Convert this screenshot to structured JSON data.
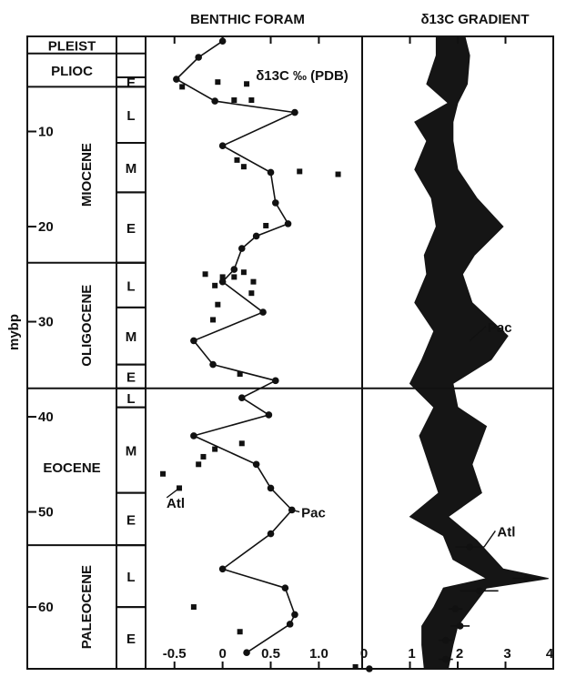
{
  "chart_data": [
    {
      "type": "table",
      "ylabel": "mybp",
      "yticks": [
        10,
        20,
        30,
        40,
        50,
        60
      ],
      "epochs": [
        {
          "label": "PLEIST",
          "start": 0,
          "end": 1.8,
          "subs": []
        },
        {
          "label": "PLIOC",
          "start": 1.8,
          "end": 5.3,
          "subs": [
            {
              "label": "E",
              "start": 4.3,
              "end": 5.3
            }
          ]
        },
        {
          "label": "MIOCENE",
          "start": 5.3,
          "end": 23.8,
          "subs": [
            {
              "label": "L",
              "start": 5.3,
              "end": 11.2
            },
            {
              "label": "M",
              "start": 11.2,
              "end": 16.4
            },
            {
              "label": "E",
              "start": 16.4,
              "end": 23.8
            }
          ]
        },
        {
          "label": "OLIGOCENE",
          "start": 23.8,
          "end": 37.0,
          "subs": [
            {
              "label": "L",
              "start": 23.8,
              "end": 28.5
            },
            {
              "label": "M",
              "start": 28.5,
              "end": 34.5
            },
            {
              "label": "E",
              "start": 34.5,
              "end": 37.0
            }
          ]
        },
        {
          "label": "EOCENE",
          "start": 37.0,
          "end": 53.5,
          "subs": [
            {
              "label": "L",
              "start": 37.0,
              "end": 39.0
            },
            {
              "label": "M",
              "start": 39.0,
              "end": 48.0
            },
            {
              "label": "E",
              "start": 48.0,
              "end": 53.5
            }
          ]
        },
        {
          "label": "PALEOCENE",
          "start": 53.5,
          "end": 66.5,
          "subs": [
            {
              "label": "L",
              "start": 53.5,
              "end": 60.0
            },
            {
              "label": "E",
              "start": 60.0,
              "end": 66.5
            }
          ]
        }
      ]
    },
    {
      "type": "scatter",
      "title": "BENTHIC FORAM",
      "annotation": "δ13C ‰ (PDB)",
      "xlim": [
        -0.8,
        1.45
      ],
      "xticks": [
        "-0.5",
        "0",
        "0.5",
        "1.0"
      ],
      "ylim": [
        0,
        66.5
      ],
      "boundary_age": 37,
      "series": [
        {
          "name": "Pac",
          "line": true,
          "points": [
            [
              0.0,
              0.5
            ],
            [
              -0.25,
              2.2
            ],
            [
              -0.48,
              4.5
            ],
            [
              -0.08,
              6.8
            ],
            [
              0.75,
              8.0
            ],
            [
              0.0,
              11.5
            ],
            [
              0.5,
              14.3
            ],
            [
              0.55,
              17.5
            ],
            [
              0.68,
              19.7
            ],
            [
              0.35,
              21.0
            ],
            [
              0.2,
              22.3
            ],
            [
              0.12,
              24.5
            ],
            [
              0.0,
              25.8
            ],
            [
              0.42,
              29.0
            ],
            [
              -0.3,
              32.0
            ],
            [
              -0.1,
              34.5
            ],
            [
              0.55,
              36.2
            ],
            [
              0.2,
              38.0
            ],
            [
              0.48,
              39.8
            ],
            [
              -0.3,
              42.0
            ],
            [
              0.35,
              45.0
            ],
            [
              0.5,
              47.5
            ],
            [
              0.72,
              49.8
            ],
            [
              0.5,
              52.3
            ],
            [
              0.0,
              56.0
            ],
            [
              0.65,
              58.0
            ],
            [
              0.75,
              60.8
            ],
            [
              0.7,
              61.8
            ],
            [
              0.25,
              64.8
            ]
          ]
        },
        {
          "name": "Atl",
          "line": false,
          "points": [
            [
              -0.42,
              5.3
            ],
            [
              -0.05,
              4.8
            ],
            [
              0.25,
              5.0
            ],
            [
              0.12,
              6.7
            ],
            [
              0.3,
              6.7
            ],
            [
              0.15,
              13.0
            ],
            [
              0.22,
              13.7
            ],
            [
              0.8,
              14.2
            ],
            [
              1.2,
              14.5
            ],
            [
              0.45,
              19.9
            ],
            [
              -0.18,
              25.0
            ],
            [
              0.12,
              25.3
            ],
            [
              0.22,
              24.8
            ],
            [
              0.0,
              25.3
            ],
            [
              0.32,
              25.8
            ],
            [
              -0.08,
              26.2
            ],
            [
              0.3,
              27.0
            ],
            [
              -0.05,
              28.2
            ],
            [
              -0.1,
              29.8
            ],
            [
              0.18,
              35.5
            ],
            [
              0.2,
              42.8
            ],
            [
              -0.08,
              43.4
            ],
            [
              -0.2,
              44.2
            ],
            [
              -0.25,
              45.0
            ],
            [
              -0.62,
              46.0
            ],
            [
              -0.45,
              47.5
            ],
            [
              -0.3,
              60.0
            ],
            [
              0.18,
              62.6
            ],
            [
              1.38,
              66.3
            ]
          ]
        }
      ],
      "labels": [
        {
          "text": "Pac",
          "x": 0.78,
          "y": 50.0
        },
        {
          "text": "Atl",
          "x": -0.62,
          "y": 49.0
        }
      ]
    },
    {
      "type": "area",
      "title": "δ13C GRADIENT",
      "xlim": [
        0,
        4
      ],
      "xticks": [
        "0",
        "1",
        "2",
        "3",
        "4"
      ],
      "ylim": [
        0,
        66.5
      ],
      "series": [
        {
          "name": "Pac",
          "left": [
            [
              1.55,
              0.0
            ],
            [
              1.55,
              2.0
            ],
            [
              1.35,
              5.0
            ],
            [
              1.8,
              7.0
            ],
            [
              1.1,
              9.0
            ],
            [
              1.35,
              11.0
            ],
            [
              1.1,
              14.0
            ],
            [
              1.45,
              17.0
            ],
            [
              1.55,
              20.0
            ],
            [
              1.3,
              23.0
            ],
            [
              1.35,
              25.0
            ],
            [
              1.1,
              28.0
            ],
            [
              1.5,
              31.0
            ],
            [
              1.25,
              34.0
            ],
            [
              1.0,
              36.5
            ],
            [
              1.5,
              39.0
            ],
            [
              1.2,
              42.0
            ],
            [
              1.4,
              45.0
            ],
            [
              1.6,
              48.0
            ],
            [
              1.0,
              50.5
            ],
            [
              1.7,
              52.5
            ],
            [
              1.9,
              55.0
            ],
            [
              2.6,
              57.0
            ],
            [
              1.7,
              58.0
            ],
            [
              1.5,
              60.0
            ],
            [
              1.25,
              62.0
            ],
            [
              1.25,
              64.0
            ],
            [
              1.3,
              66.5
            ]
          ],
          "right": [
            [
              2.15,
              0.0
            ],
            [
              2.25,
              2.0
            ],
            [
              2.2,
              5.0
            ],
            [
              2.0,
              7.0
            ],
            [
              1.9,
              9.0
            ],
            [
              1.9,
              11.0
            ],
            [
              2.0,
              14.0
            ],
            [
              2.4,
              17.0
            ],
            [
              2.95,
              20.0
            ],
            [
              2.35,
              23.0
            ],
            [
              2.1,
              25.0
            ],
            [
              2.3,
              28.0
            ],
            [
              3.05,
              31.5
            ],
            [
              2.7,
              34.0
            ],
            [
              1.9,
              36.5
            ],
            [
              2.0,
              39.0
            ],
            [
              2.6,
              41.0
            ],
            [
              2.3,
              45.0
            ],
            [
              2.5,
              48.0
            ],
            [
              1.8,
              50.5
            ],
            [
              2.4,
              53.0
            ],
            [
              2.95,
              56.0
            ],
            [
              3.9,
              57.0
            ],
            [
              2.6,
              58.0
            ],
            [
              2.3,
              60.0
            ],
            [
              2.0,
              62.0
            ],
            [
              1.9,
              64.0
            ],
            [
              1.8,
              66.5
            ]
          ]
        }
      ],
      "atl_points": [
        {
          "x": 2.25,
          "y": 53.7,
          "err": 0.3
        },
        {
          "x": 3.45,
          "y": 57.0,
          "err": 0.3
        },
        {
          "x": 2.45,
          "y": 58.3,
          "err": 0.4
        },
        {
          "x": 1.95,
          "y": 60.2,
          "err": 0.15
        },
        {
          "x": 2.05,
          "y": 62.0,
          "err": 0.2
        },
        {
          "x": 1.75,
          "y": 63.5,
          "err": 0.15
        },
        {
          "x": 1.75,
          "y": 65.5,
          "err": 0.15
        },
        {
          "x": 0.15,
          "y": 66.5,
          "err": 0.15
        }
      ],
      "labels": [
        {
          "text": "Pac",
          "x": 2.55,
          "y": 30.5
        },
        {
          "text": "Atl",
          "x": 2.75,
          "y": 52.0
        }
      ]
    }
  ]
}
